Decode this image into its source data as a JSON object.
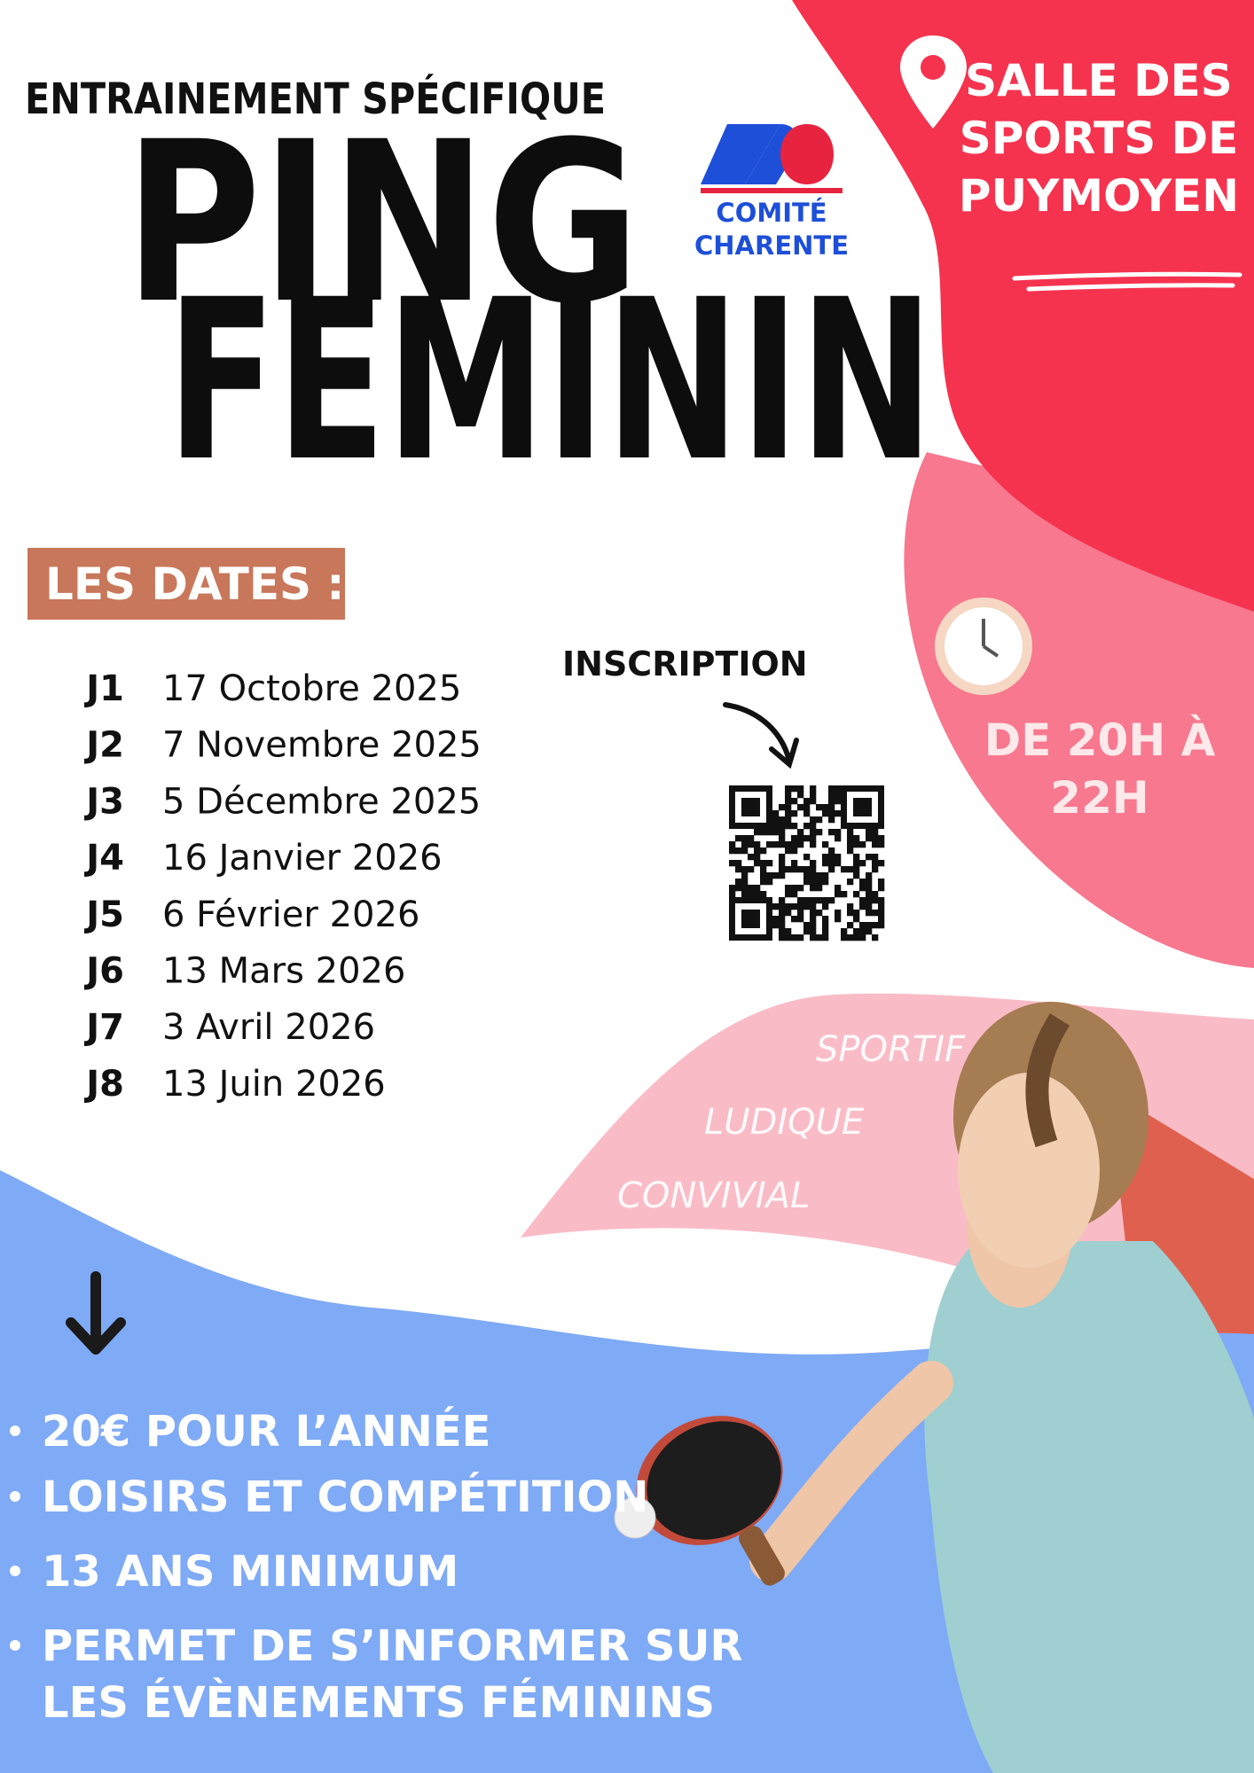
{
  "header": {
    "subtitle": "ENTRAINEMENT SPÉCIFIQUE",
    "title_line1": "PING",
    "title_line2": "FEMININ"
  },
  "logo": {
    "line1": "COMITÉ",
    "line2": "CHARENTE"
  },
  "location": {
    "lines": [
      "SALLE DES",
      "SPORTS DE",
      "PUYMOYEN"
    ]
  },
  "dates": {
    "heading": "LES DATES :",
    "rows": [
      {
        "label": "J1",
        "date": "17 Octobre 2025"
      },
      {
        "label": "J2",
        "date": "7 Novembre 2025"
      },
      {
        "label": "J3",
        "date": "5 Décembre 2025"
      },
      {
        "label": "J4",
        "date": "16 Janvier 2026"
      },
      {
        "label": "J5",
        "date": "6 Février 2026"
      },
      {
        "label": "J6",
        "date": "13 Mars 2026"
      },
      {
        "label": "J7",
        "date": "3 Avril 2026"
      },
      {
        "label": "J8",
        "date": "13 Juin 2026"
      }
    ]
  },
  "inscription": "INSCRIPTION",
  "time": {
    "lines": [
      "DE 20H À",
      "22H"
    ]
  },
  "qualities": [
    "SPORTIF",
    "LUDIQUE",
    "CONVIVIAL"
  ],
  "bullets": [
    {
      "lines": [
        "20€ POUR L’ANNÉE"
      ]
    },
    {
      "lines": [
        "LOISIRS ET COMPÉTITION"
      ]
    },
    {
      "lines": [
        "13 ANS MINIMUM"
      ]
    },
    {
      "lines": [
        "PERMET DE S’INFORMER SUR",
        "LES ÉVÈNEMENTS FÉMININS"
      ]
    }
  ]
}
